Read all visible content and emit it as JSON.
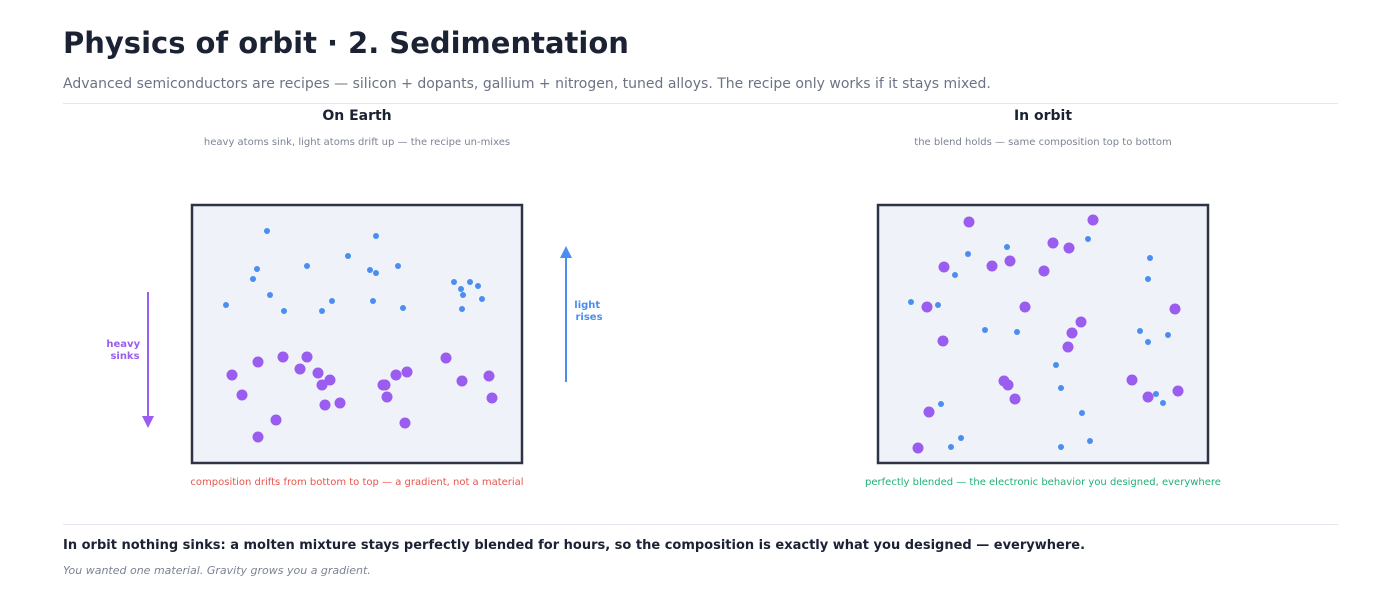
{
  "header": {
    "title_left": "Physics of orbit",
    "title_sep": "·",
    "title_right": "2. Sedimentation",
    "subtitle": "Advanced semiconductors are recipes — silicon + dopants, gallium + nitrogen, tuned alloys. The recipe only works if it stays mixed."
  },
  "colors": {
    "heavy": "#9b5cf0",
    "light": "#4a8ff0",
    "box_fill": "#eff2f8",
    "box_border": "#2e3445",
    "warn": "#e8554d",
    "good": "#1fb077"
  },
  "panels": [
    {
      "id": "earth",
      "heading": "On Earth",
      "caption": "heavy atoms sink, light atoms drift up — the recipe un-mixes",
      "footer": "composition drifts from bottom to top — a gradient, not a material",
      "footer_tone": "warn",
      "left_label": [
        "heavy",
        "sinks"
      ],
      "right_label": [
        "light",
        "rises"
      ],
      "light_atoms": [
        [
          75,
          26
        ],
        [
          65,
          64
        ],
        [
          61,
          74
        ],
        [
          78,
          90
        ],
        [
          92,
          106
        ],
        [
          115,
          61
        ],
        [
          156,
          51
        ],
        [
          184,
          31
        ],
        [
          178,
          65
        ],
        [
          184,
          68
        ],
        [
          206,
          61
        ],
        [
          130,
          106
        ],
        [
          140,
          96
        ],
        [
          181,
          96
        ],
        [
          211,
          103
        ],
        [
          34,
          100
        ],
        [
          262,
          77
        ],
        [
          269,
          84
        ],
        [
          278,
          77
        ],
        [
          271,
          90
        ],
        [
          286,
          81
        ],
        [
          290,
          94
        ],
        [
          270,
          104
        ]
      ],
      "heavy_atoms": [
        [
          40,
          170
        ],
        [
          50,
          190
        ],
        [
          66,
          157
        ],
        [
          91,
          152
        ],
        [
          115,
          152
        ],
        [
          108,
          164
        ],
        [
          126,
          168
        ],
        [
          130,
          180
        ],
        [
          138,
          175
        ],
        [
          133,
          200
        ],
        [
          148,
          198
        ],
        [
          191,
          180
        ],
        [
          193,
          180
        ],
        [
          195,
          192
        ],
        [
          204,
          170
        ],
        [
          215,
          167
        ],
        [
          254,
          153
        ],
        [
          270,
          176
        ],
        [
          297,
          171
        ],
        [
          300,
          193
        ],
        [
          84,
          215
        ],
        [
          66,
          232
        ],
        [
          213,
          218
        ]
      ]
    },
    {
      "id": "orbit",
      "heading": "In orbit",
      "caption": "the blend holds — same composition top to bottom",
      "footer": "perfectly blended — the electronic behavior you designed, everywhere",
      "footer_tone": "good",
      "light_atoms": [
        [
          90,
          49
        ],
        [
          129,
          42
        ],
        [
          77,
          70
        ],
        [
          33,
          97
        ],
        [
          60,
          100
        ],
        [
          107,
          125
        ],
        [
          139,
          127
        ],
        [
          178,
          160
        ],
        [
          183,
          183
        ],
        [
          204,
          208
        ],
        [
          210,
          34
        ],
        [
          272,
          53
        ],
        [
          270,
          74
        ],
        [
          262,
          126
        ],
        [
          270,
          137
        ],
        [
          290,
          130
        ],
        [
          278,
          189
        ],
        [
          285,
          198
        ],
        [
          63,
          199
        ],
        [
          83,
          233
        ],
        [
          73,
          242
        ],
        [
          183,
          242
        ],
        [
          212,
          236
        ]
      ],
      "heavy_atoms": [
        [
          91,
          17
        ],
        [
          215,
          15
        ],
        [
          66,
          62
        ],
        [
          114,
          61
        ],
        [
          132,
          56
        ],
        [
          175,
          38
        ],
        [
          191,
          43
        ],
        [
          166,
          66
        ],
        [
          49,
          102
        ],
        [
          147,
          102
        ],
        [
          65,
          136
        ],
        [
          194,
          128
        ],
        [
          190,
          142
        ],
        [
          203,
          117
        ],
        [
          126,
          176
        ],
        [
          130,
          180
        ],
        [
          137,
          194
        ],
        [
          254,
          175
        ],
        [
          270,
          192
        ],
        [
          300,
          186
        ],
        [
          297,
          104
        ],
        [
          51,
          207
        ],
        [
          40,
          243
        ]
      ]
    }
  ],
  "takeaway": "In orbit nothing sinks: a molten mixture stays perfectly blended for hours, so the composition is exactly what you designed — everywhere.",
  "aside": "You wanted one material. Gravity grows you a gradient."
}
